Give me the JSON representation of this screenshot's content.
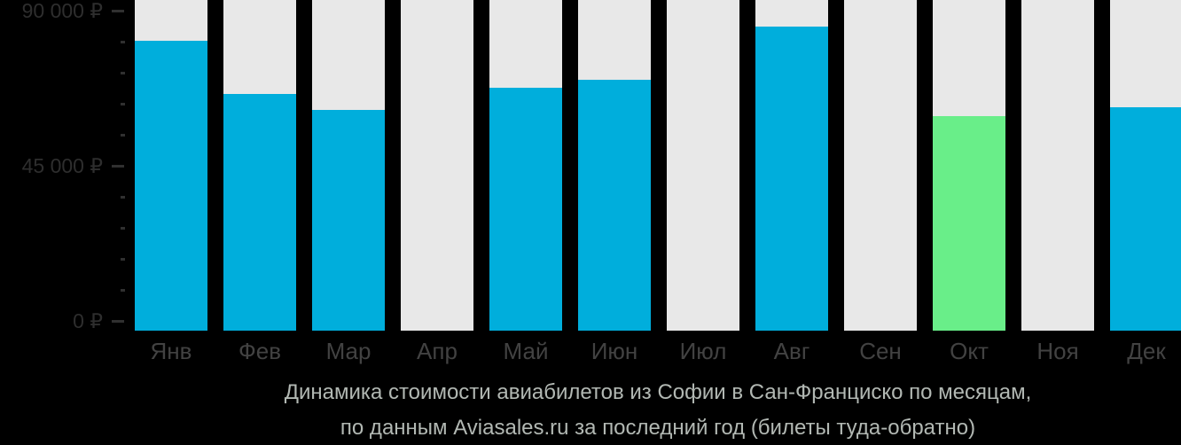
{
  "chart_data": {
    "type": "bar",
    "title": "Динамика стоимости авиабилетов из Софии в Сан-Франциско по месяцам,",
    "subtitle": "по данным Aviasales.ru за последний год (билеты туда-обратно)",
    "categories": [
      "Янв",
      "Фев",
      "Мар",
      "Апр",
      "Май",
      "Июн",
      "Июл",
      "Авг",
      "Сен",
      "Окт",
      "Ноя",
      "Дек"
    ],
    "values": [
      81600,
      66600,
      62100,
      null,
      68300,
      70600,
      null,
      85500,
      null,
      60400,
      null,
      62800
    ],
    "highlight_index": 9,
    "currency": "₽",
    "ylim": [
      0,
      90000
    ],
    "minor_tick_step": 9000,
    "y_ticks": [
      {
        "value": 90000,
        "label": "90 000 ₽"
      },
      {
        "value": 45000,
        "label": "45 000 ₽"
      },
      {
        "value": 0,
        "label": "0 ₽"
      }
    ],
    "xlabel": "",
    "ylabel": "",
    "grid": false,
    "legend_position": "none",
    "colors": {
      "bar": "#00AEDC",
      "highlight_bar": "#69EE89",
      "column_background": "#E8E8E8",
      "page_background": "#000000",
      "axis_label": "#2E2E2E",
      "month_label": "#424242",
      "tick": "#303030",
      "caption_text": "#B2B8B3"
    }
  }
}
